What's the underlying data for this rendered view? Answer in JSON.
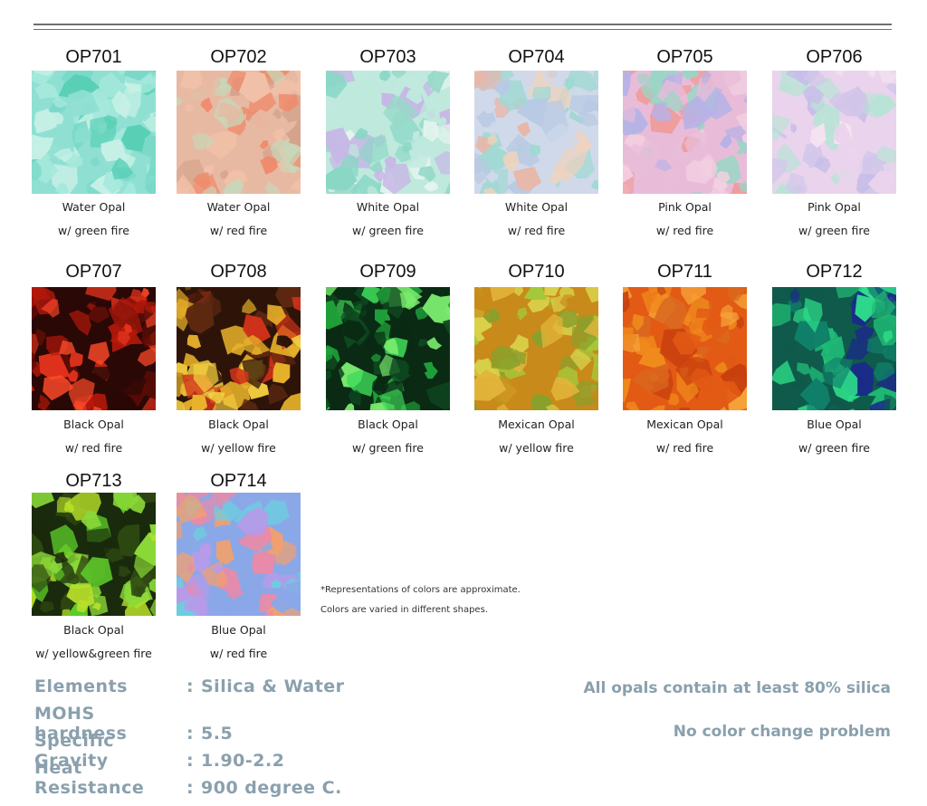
{
  "swatches": [
    {
      "code": "OP701",
      "line1": "Water Opal",
      "line2": "w/ green fire",
      "colors": [
        "#8fe0d2",
        "#58cfb5",
        "#c8f0e6",
        "#7ad8c8",
        "#a6e9dc"
      ]
    },
    {
      "code": "OP702",
      "line1": "Water Opal",
      "line2": "w/ red fire",
      "colors": [
        "#e7b9a2",
        "#f08a6a",
        "#c9d6b8",
        "#f1c0a8",
        "#d5a28c"
      ]
    },
    {
      "code": "OP703",
      "line1": "White Opal",
      "line2": "w/ green fire",
      "colors": [
        "#bfe9dd",
        "#8ad7c6",
        "#c7b7e6",
        "#e4f4ef",
        "#97d9c8"
      ]
    },
    {
      "code": "OP704",
      "line1": "White Opal",
      "line2": "w/ red fire",
      "colors": [
        "#cfd9ea",
        "#e7b7a8",
        "#b8c9e3",
        "#f0d2bc",
        "#9fd8d2"
      ]
    },
    {
      "code": "OP705",
      "line1": "Pink Opal",
      "line2": "w/ red fire",
      "colors": [
        "#e8bcd8",
        "#f09c9c",
        "#b7b2e6",
        "#9ad6c4",
        "#f3d0e2"
      ]
    },
    {
      "code": "OP706",
      "line1": "Pink Opal",
      "line2": "w/ green fire",
      "colors": [
        "#ead3ec",
        "#c6bee9",
        "#b9e3d6",
        "#f4e2f0",
        "#d2c6ea"
      ]
    },
    {
      "code": "OP707",
      "line1": "Black Opal",
      "line2": "w/ red fire",
      "colors": [
        "#2a0805",
        "#b3180b",
        "#e0321c",
        "#5c0c06",
        "#ff4a2a"
      ]
    },
    {
      "code": "OP708",
      "line1": "Black Opal",
      "line2": "w/ yellow fire",
      "colors": [
        "#2e1408",
        "#d2321a",
        "#e8b22a",
        "#5d2810",
        "#f4d040"
      ]
    },
    {
      "code": "OP709",
      "line1": "Black Opal",
      "line2": "w/ green fire",
      "colors": [
        "#0a2a14",
        "#1fa13a",
        "#3fd95a",
        "#0e4a20",
        "#7bec6e"
      ]
    },
    {
      "code": "OP710",
      "line1": "Mexican Opal",
      "line2": "w/ yellow fire",
      "colors": [
        "#c88a1a",
        "#a5c83a",
        "#e2b43a",
        "#8aa02c",
        "#d9d14a"
      ]
    },
    {
      "code": "OP711",
      "line1": "Mexican Opal",
      "line2": "w/ red fire",
      "colors": [
        "#e25a14",
        "#f08a1c",
        "#c8400e",
        "#f7a53a",
        "#d96a20"
      ]
    },
    {
      "code": "OP712",
      "line1": "Blue Opal",
      "line2": "w/ green fire",
      "colors": [
        "#0f5a4a",
        "#1fb874",
        "#1b2a8a",
        "#2ee08a",
        "#10806a"
      ]
    },
    {
      "code": "OP713",
      "line1": "Black Opal",
      "line2": "w/ yellow&green fire",
      "colors": [
        "#1a2a0c",
        "#5fcf2a",
        "#b8e02a",
        "#2f4a12",
        "#8ad838"
      ]
    },
    {
      "code": "OP714",
      "line1": "Blue Opal",
      "line2": "w/ red fire",
      "colors": [
        "#8aa8e8",
        "#e98aa8",
        "#6ad0e0",
        "#f0a070",
        "#b89ae8"
      ]
    }
  ],
  "notes": [
    "*Representations of colors are approximate.",
    "Colors are varied in different shapes."
  ],
  "specs": [
    {
      "key": "Elements",
      "sep": ":",
      "value": "Silica & Water"
    },
    {
      "key": "MOHS hardness",
      "sep": ":",
      "value": "5.5"
    },
    {
      "key": "Specific Gravity",
      "sep": ":",
      "value": "1.90-2.2"
    },
    {
      "key": "Heat Resistance",
      "sep": ":",
      "value": "900 degree C."
    }
  ],
  "claims": [
    "All opals contain at least 80% silica",
    "No color change problem"
  ],
  "accent_color": "#8aa0ad"
}
